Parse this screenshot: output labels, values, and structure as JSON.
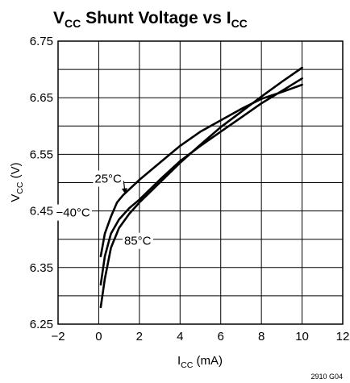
{
  "chart_data": {
    "type": "line",
    "title": {
      "main": "V",
      "main_sub": "CC",
      "rest": " Shunt Voltage vs I",
      "rest_sub": "CC"
    },
    "xlabel": {
      "main": "I",
      "sub": "CC",
      "unit": " (mA)"
    },
    "ylabel": {
      "main": "V",
      "sub": "CC",
      "unit": " (V)"
    },
    "xlim": [
      -2,
      12
    ],
    "ylim": [
      6.25,
      6.75
    ],
    "x_ticks": [
      "−2",
      "0",
      "2",
      "4",
      "6",
      "8",
      "10",
      "12"
    ],
    "x_tick_values": [
      -2,
      0,
      2,
      4,
      6,
      8,
      10,
      12
    ],
    "y_ticks": [
      "6.25",
      "6.35",
      "6.45",
      "6.55",
      "6.65",
      "6.75"
    ],
    "y_tick_values": [
      6.25,
      6.35,
      6.45,
      6.55,
      6.65,
      6.75
    ],
    "grid": true,
    "series": [
      {
        "name": "25°C",
        "x": [
          0.1,
          0.3,
          0.6,
          0.9,
          1.2,
          2,
          3,
          4,
          5,
          6,
          7,
          8,
          9,
          10
        ],
        "y": [
          6.37,
          6.41,
          6.44,
          6.465,
          6.478,
          6.505,
          6.535,
          6.565,
          6.59,
          6.61,
          6.63,
          6.648,
          6.66,
          6.673
        ]
      },
      {
        "name": "−40°C",
        "x": [
          0.1,
          0.3,
          0.6,
          1.0,
          1.5,
          2,
          3,
          4,
          5,
          6,
          7,
          8,
          9,
          10
        ],
        "y": [
          6.32,
          6.37,
          6.41,
          6.435,
          6.455,
          6.47,
          6.505,
          6.538,
          6.565,
          6.59,
          6.615,
          6.64,
          6.662,
          6.684
        ]
      },
      {
        "name": "85°C",
        "x": [
          0.1,
          0.3,
          0.6,
          1.0,
          1.5,
          2,
          3,
          4,
          5,
          6,
          7,
          8,
          9,
          10
        ],
        "y": [
          6.28,
          6.33,
          6.385,
          6.42,
          6.445,
          6.465,
          6.5,
          6.535,
          6.567,
          6.598,
          6.625,
          6.652,
          6.678,
          6.703
        ]
      }
    ],
    "annotations": [
      {
        "text": "25°C",
        "x": -0.2,
        "y": 6.5,
        "arrow_to": [
          1.3,
          6.48
        ]
      },
      {
        "text": "−40°C",
        "x": -2.1,
        "y": 6.44
      },
      {
        "text": "85°C",
        "x": 1.25,
        "y": 6.39
      }
    ],
    "footnote": "2910 G04"
  }
}
